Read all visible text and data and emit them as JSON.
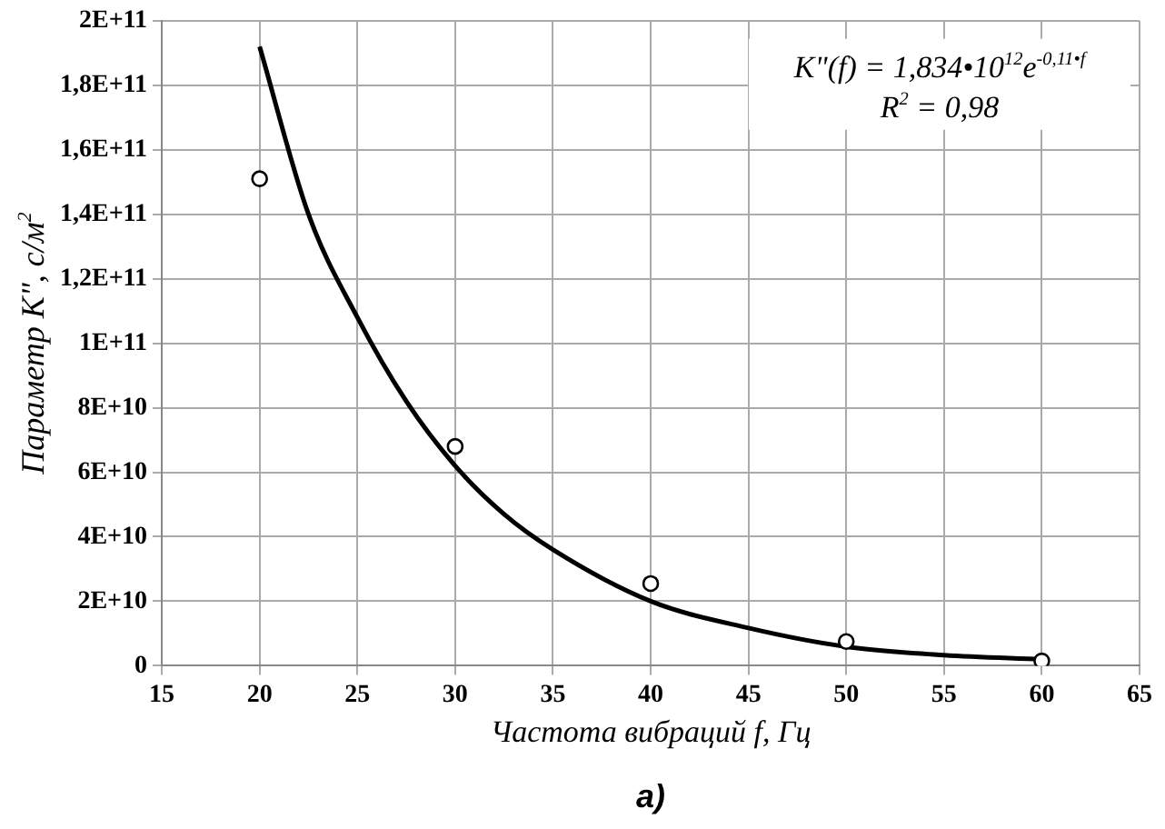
{
  "chart_data": {
    "type": "scatter",
    "xlabel": "Частота вибраций f, Гц",
    "ylabel": "Параметр K\", с/м$^{2}$",
    "series": [
      {
        "color": "#000000",
        "marker": "circle",
        "x": [
          20,
          30,
          40,
          50,
          60
        ],
        "values": [
          151000000000,
          68000000000,
          25500000000,
          7500000000,
          1500000000
        ]
      },
      {
        "type": "line",
        "color": "#000000",
        "marker": "none",
        "line_style": "solid",
        "x": [
          20,
          22.5,
          25,
          27.5,
          30,
          32.5,
          35,
          40,
          45,
          50,
          55,
          60
        ],
        "values": [
          192000000000,
          140000000000,
          108000000000,
          82000000000,
          62000000000,
          47000000000,
          36000000000,
          20000000000,
          11700000000,
          5900000000,
          3300000000,
          2000000000
        ]
      }
    ],
    "xlim": [
      15,
      65
    ],
    "xticks": [
      15,
      20,
      25,
      30,
      35,
      40,
      45,
      50,
      55,
      60,
      65
    ],
    "ylim": [
      0,
      200000000000
    ],
    "yticks": [
      {
        "value": 0,
        "label": "0"
      },
      {
        "value": 20000000000,
        "label": "2E+10"
      },
      {
        "value": 40000000000,
        "label": "4E+10"
      },
      {
        "value": 60000000000,
        "label": "6E+10"
      },
      {
        "value": 80000000000,
        "label": "8E+10"
      },
      {
        "value": 100000000000,
        "label": "1E+11"
      },
      {
        "value": 120000000000,
        "label": "1,2E+11"
      },
      {
        "value": 140000000000,
        "label": "1,4E+11"
      },
      {
        "value": 160000000000,
        "label": "1,6E+11"
      },
      {
        "value": 180000000000,
        "label": "1,8E+11"
      },
      {
        "value": 200000000000,
        "label": "2E+11"
      }
    ],
    "grid": true,
    "legend": false,
    "annotations": [
      "K\"(f) = 1,834•10$^{12}$e$^{-0,11•f}$",
      "R$^{2}$ = 0,98",
      "а)"
    ]
  }
}
